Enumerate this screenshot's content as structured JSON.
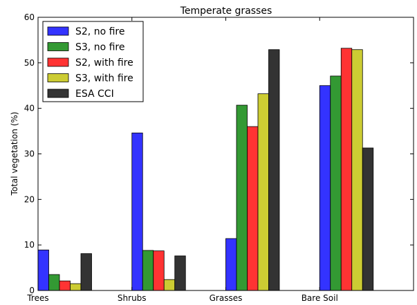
{
  "chart_data": {
    "type": "bar",
    "title": "Temperate grasses",
    "xlabel": "",
    "ylabel": "Total vegetation (%)",
    "ylim": [
      0,
      60
    ],
    "yticks": [
      0,
      10,
      20,
      30,
      40,
      50,
      60
    ],
    "categories": [
      "Trees",
      "Shrubs",
      "Grasses",
      "Bare Soil"
    ],
    "series": [
      {
        "name": "S2, no fire",
        "color": "#3333ff",
        "values": [
          8.9,
          34.6,
          11.4,
          45.0
        ]
      },
      {
        "name": "S3, no fire",
        "color": "#339933",
        "values": [
          3.5,
          8.8,
          40.7,
          47.1
        ]
      },
      {
        "name": "S2, with fire",
        "color": "#ff3333",
        "values": [
          2.1,
          8.7,
          36.0,
          53.2
        ]
      },
      {
        "name": "S3, with fire",
        "color": "#cccc33",
        "values": [
          1.5,
          2.4,
          43.2,
          52.9
        ]
      },
      {
        "name": "ESA CCI",
        "color": "#333333",
        "values": [
          8.1,
          7.6,
          52.9,
          31.3
        ]
      }
    ],
    "grid": false,
    "legend_position": "top-left"
  }
}
